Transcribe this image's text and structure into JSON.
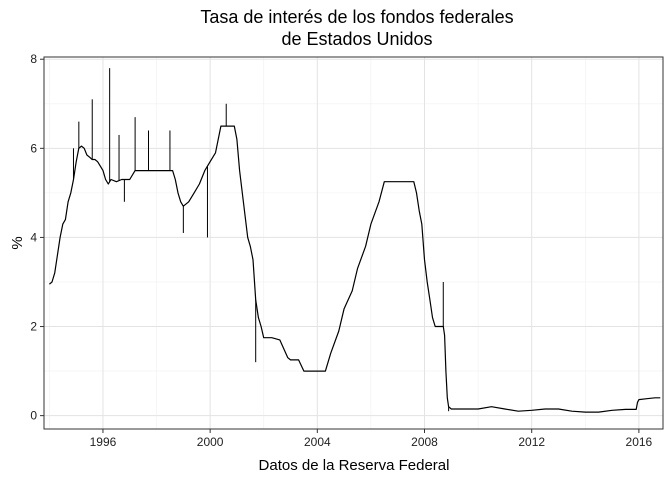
{
  "chart_data": {
    "type": "line",
    "title": [
      "Tasa de interés de los fondos federales",
      "de Estados Unidos"
    ],
    "xlabel": "Datos de la Reserva Federal",
    "ylabel": "%",
    "xlim": [
      1993.8,
      2016.9
    ],
    "ylim": [
      -0.3,
      8.05
    ],
    "x_ticks": [
      1996,
      2000,
      2004,
      2008,
      2012,
      2016
    ],
    "x_tick_labels": [
      "1996",
      "2000",
      "2004",
      "2008",
      "2012",
      "2016"
    ],
    "y_ticks": [
      0,
      2,
      4,
      6,
      8
    ],
    "y_tick_labels": [
      "0",
      "2",
      "4",
      "6",
      "8"
    ],
    "grid": true,
    "legend": "none",
    "line_color": "#000000",
    "series": [
      {
        "x": [
          1994.0,
          1994.1,
          1994.2,
          1994.3,
          1994.4,
          1994.5,
          1994.6,
          1994.7,
          1994.8,
          1994.9,
          1995.0,
          1995.1,
          1995.2,
          1995.3,
          1995.4,
          1995.5,
          1995.6,
          1995.7,
          1995.8,
          1995.9,
          1996.0,
          1996.1,
          1996.2,
          1996.3,
          1996.5,
          1996.7,
          1996.9,
          1997.0,
          1997.2,
          1997.4,
          1997.6,
          1997.8,
          1998.0,
          1998.2,
          1998.4,
          1998.6,
          1998.7,
          1998.8,
          1998.9,
          1999.0,
          1999.2,
          1999.4,
          1999.6,
          1999.8,
          2000.0,
          2000.2,
          2000.4,
          2000.5,
          2000.7,
          2000.9,
          2001.0,
          2001.1,
          2001.2,
          2001.3,
          2001.4,
          2001.5,
          2001.6,
          2001.7,
          2001.8,
          2001.9,
          2002.0,
          2002.3,
          2002.6,
          2002.9,
          2003.0,
          2003.3,
          2003.5,
          2003.7,
          2004.0,
          2004.3,
          2004.5,
          2004.8,
          2005.0,
          2005.3,
          2005.5,
          2005.8,
          2006.0,
          2006.3,
          2006.5,
          2006.8,
          2007.0,
          2007.3,
          2007.5,
          2007.6,
          2007.7,
          2007.8,
          2007.9,
          2008.0,
          2008.1,
          2008.2,
          2008.3,
          2008.4,
          2008.5,
          2008.6,
          2008.7,
          2008.75,
          2008.8,
          2008.85,
          2008.9,
          2009.0,
          2009.5,
          2010.0,
          2010.5,
          2011.0,
          2011.5,
          2012.0,
          2012.5,
          2013.0,
          2013.5,
          2014.0,
          2014.5,
          2015.0,
          2015.5,
          2015.9,
          2015.95,
          2016.0,
          2016.3,
          2016.6,
          2016.8
        ],
        "values": [
          2.95,
          3.0,
          3.2,
          3.6,
          4.0,
          4.3,
          4.4,
          4.8,
          5.0,
          5.3,
          5.7,
          6.0,
          6.05,
          6.0,
          5.85,
          5.8,
          5.75,
          5.75,
          5.7,
          5.6,
          5.5,
          5.3,
          5.2,
          5.3,
          5.25,
          5.3,
          5.3,
          5.3,
          5.5,
          5.5,
          5.5,
          5.5,
          5.5,
          5.5,
          5.5,
          5.5,
          5.3,
          5.0,
          4.8,
          4.7,
          4.8,
          5.0,
          5.2,
          5.5,
          5.7,
          5.9,
          6.5,
          6.5,
          6.5,
          6.5,
          6.2,
          5.5,
          5.0,
          4.5,
          4.0,
          3.8,
          3.5,
          2.6,
          2.2,
          2.0,
          1.75,
          1.75,
          1.7,
          1.3,
          1.25,
          1.25,
          1.0,
          1.0,
          1.0,
          1.0,
          1.4,
          1.9,
          2.4,
          2.8,
          3.3,
          3.8,
          4.3,
          4.8,
          5.25,
          5.25,
          5.25,
          5.25,
          5.25,
          5.25,
          5.0,
          4.6,
          4.3,
          3.5,
          3.0,
          2.6,
          2.2,
          2.0,
          2.0,
          2.0,
          2.0,
          1.8,
          1.0,
          0.4,
          0.2,
          0.15,
          0.15,
          0.15,
          0.2,
          0.15,
          0.1,
          0.12,
          0.15,
          0.15,
          0.1,
          0.08,
          0.08,
          0.12,
          0.14,
          0.14,
          0.3,
          0.36,
          0.38,
          0.4,
          0.4
        ],
        "spikes": [
          {
            "x": 1994.9,
            "y": 6.0
          },
          {
            "x": 1995.1,
            "y": 6.6
          },
          {
            "x": 1995.6,
            "y": 7.1
          },
          {
            "x": 1996.25,
            "y": 7.8
          },
          {
            "x": 1996.6,
            "y": 6.3
          },
          {
            "x": 1996.8,
            "y": 4.8
          },
          {
            "x": 1997.2,
            "y": 6.7
          },
          {
            "x": 1997.7,
            "y": 6.4
          },
          {
            "x": 1998.5,
            "y": 6.4
          },
          {
            "x": 1999.0,
            "y": 4.1
          },
          {
            "x": 1999.9,
            "y": 4.0
          },
          {
            "x": 2000.6,
            "y": 7.0
          },
          {
            "x": 2001.7,
            "y": 1.2
          },
          {
            "x": 2008.7,
            "y": 3.0
          },
          {
            "x": 2008.9,
            "y": 0.1
          }
        ]
      }
    ]
  }
}
